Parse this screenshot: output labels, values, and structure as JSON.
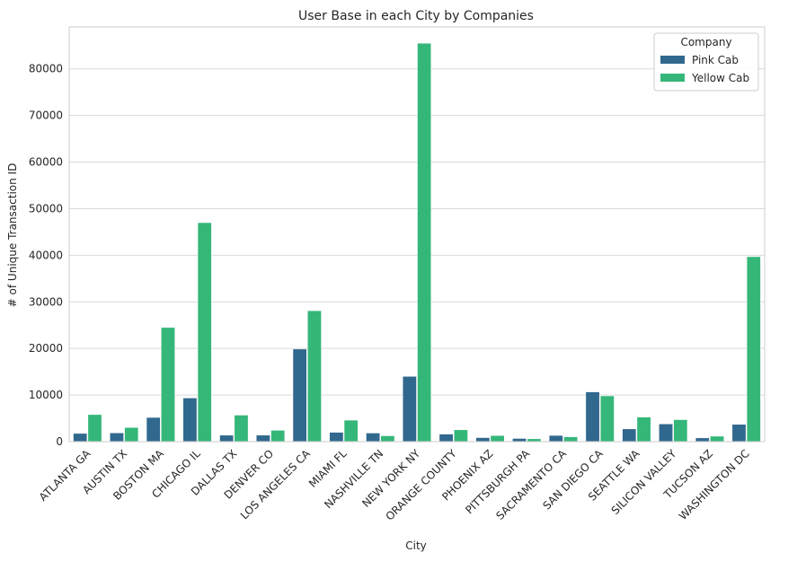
{
  "chart_data": {
    "type": "bar",
    "title": "User Base in each City by Companies",
    "xlabel": "City",
    "ylabel": "# of Unique Transaction ID",
    "ylim": [
      0,
      89000
    ],
    "yticks": [
      0,
      10000,
      20000,
      30000,
      40000,
      50000,
      60000,
      70000,
      80000
    ],
    "grid": true,
    "legend": {
      "title": "Company",
      "placement": "top-right"
    },
    "categories": [
      "ATLANTA GA",
      "AUSTIN TX",
      "BOSTON MA",
      "CHICAGO IL",
      "DALLAS TX",
      "DENVER CO",
      "LOS ANGELES CA",
      "MIAMI FL",
      "NASHVILLE TN",
      "NEW YORK NY",
      "ORANGE COUNTY",
      "PHOENIX AZ",
      "PITTSBURGH PA",
      "SACRAMENTO CA",
      "SAN DIEGO CA",
      "SEATTLE WA",
      "SILICON VALLEY",
      "TUCSON AZ",
      "WASHINGTON DC"
    ],
    "series": [
      {
        "name": "Pink Cab",
        "color": "#31688e",
        "values": [
          1760,
          1870,
          5190,
          9360,
          1380,
          1390,
          19870,
          2000,
          1840,
          14000,
          1620,
          860,
          680,
          1330,
          10670,
          2730,
          3790,
          800,
          3700
        ]
      },
      {
        "name": "Yellow Cab",
        "color": "#35b779",
        "values": [
          5800,
          3030,
          24500,
          47000,
          5690,
          2430,
          28100,
          4610,
          1250,
          85500,
          2540,
          1310,
          610,
          1030,
          9820,
          5270,
          4720,
          1160,
          39700
        ]
      }
    ]
  }
}
